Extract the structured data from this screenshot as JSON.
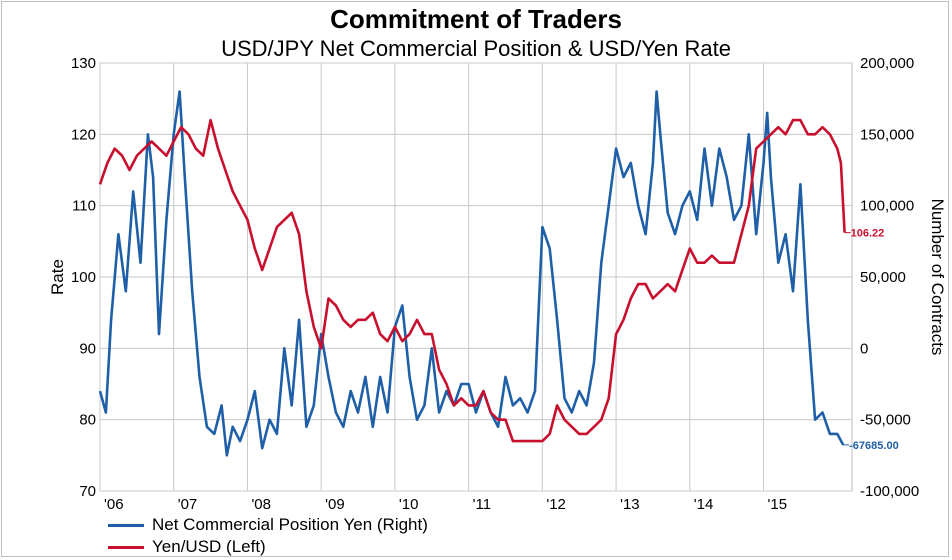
{
  "header": {
    "title": "Commitment of Traders",
    "subtitle": "USD/JPY Net Commercial Position & USD/Yen Rate"
  },
  "legend": {
    "items": [
      {
        "label": "Net Commercial Position Yen (Right)",
        "color": "#1f5fa8"
      },
      {
        "label": "Yen/USD (Left)",
        "color": "#c8102e"
      }
    ]
  },
  "chart_data": {
    "type": "line",
    "title": "Commitment of Traders",
    "subtitle": "USD/JPY Net Commercial Position & USD/Yen Rate",
    "ylabel_left": "Rate",
    "ylabel_right": "Number of Contracts",
    "ylim_left": [
      70,
      130
    ],
    "ylim_right": [
      -100000,
      200000
    ],
    "xlim": [
      2006.0,
      2016.2
    ],
    "grid": true,
    "legend_position": "bottom-left",
    "left_ticks": [
      "130",
      "120",
      "110",
      "100",
      "90",
      "80",
      "70"
    ],
    "right_ticks": [
      "200,000",
      "150,000",
      "100,000",
      "50,000",
      "0",
      "-50,000",
      "-100,000"
    ],
    "x_ticks": [
      {
        "label": "'06",
        "x": 2006.0
      },
      {
        "label": "'07",
        "x": 2007.0
      },
      {
        "label": "'08",
        "x": 2008.0
      },
      {
        "label": "'09",
        "x": 2009.0
      },
      {
        "label": "'10",
        "x": 2010.0
      },
      {
        "label": "'11",
        "x": 2011.0
      },
      {
        "label": "'12",
        "x": 2012.0
      },
      {
        "label": "'13",
        "x": 2013.0
      },
      {
        "label": "'14",
        "x": 2014.0
      },
      {
        "label": "'15",
        "x": 2015.0
      }
    ],
    "series": [
      {
        "name": "Net Commercial Position Yen (Right)",
        "axis": "right",
        "color": "#1f5fa8",
        "end_label": "-67685.00",
        "x": [
          2006.0,
          2006.08,
          2006.15,
          2006.25,
          2006.35,
          2006.45,
          2006.55,
          2006.65,
          2006.72,
          2006.8,
          2006.9,
          2007.0,
          2007.08,
          2007.15,
          2007.25,
          2007.35,
          2007.45,
          2007.55,
          2007.65,
          2007.72,
          2007.8,
          2007.9,
          2008.0,
          2008.1,
          2008.2,
          2008.3,
          2008.4,
          2008.5,
          2008.6,
          2008.7,
          2008.8,
          2008.9,
          2009.0,
          2009.1,
          2009.2,
          2009.3,
          2009.4,
          2009.5,
          2009.6,
          2009.7,
          2009.8,
          2009.9,
          2010.0,
          2010.1,
          2010.2,
          2010.3,
          2010.4,
          2010.5,
          2010.6,
          2010.7,
          2010.8,
          2010.9,
          2011.0,
          2011.1,
          2011.2,
          2011.3,
          2011.4,
          2011.5,
          2011.6,
          2011.7,
          2011.8,
          2011.9,
          2012.0,
          2012.1,
          2012.2,
          2012.3,
          2012.4,
          2012.5,
          2012.6,
          2012.7,
          2012.8,
          2012.9,
          2013.0,
          2013.1,
          2013.2,
          2013.3,
          2013.4,
          2013.5,
          2013.55,
          2013.6,
          2013.7,
          2013.8,
          2013.9,
          2014.0,
          2014.1,
          2014.2,
          2014.3,
          2014.4,
          2014.5,
          2014.6,
          2014.7,
          2014.8,
          2014.9,
          2015.0,
          2015.05,
          2015.1,
          2015.2,
          2015.3,
          2015.4,
          2015.5,
          2015.6,
          2015.7,
          2015.8,
          2015.9,
          2016.0,
          2016.08
        ],
        "values": [
          -30000,
          -45000,
          20000,
          80000,
          40000,
          110000,
          60000,
          150000,
          120000,
          10000,
          90000,
          150000,
          180000,
          120000,
          40000,
          -20000,
          -55000,
          -60000,
          -40000,
          -75000,
          -55000,
          -65000,
          -50000,
          -30000,
          -70000,
          -50000,
          -60000,
          0,
          -40000,
          20000,
          -55000,
          -40000,
          10000,
          -20000,
          -45000,
          -55000,
          -30000,
          -45000,
          -20000,
          -55000,
          -20000,
          -45000,
          15000,
          30000,
          -20000,
          -50000,
          -40000,
          0,
          -45000,
          -30000,
          -40000,
          -25000,
          -25000,
          -45000,
          -30000,
          -45000,
          -55000,
          -20000,
          -40000,
          -35000,
          -45000,
          -30000,
          85000,
          70000,
          20000,
          -35000,
          -45000,
          -30000,
          -40000,
          -10000,
          60000,
          100000,
          140000,
          120000,
          130000,
          100000,
          80000,
          130000,
          180000,
          150000,
          95000,
          80000,
          100000,
          110000,
          90000,
          140000,
          100000,
          140000,
          120000,
          90000,
          100000,
          150000,
          80000,
          130000,
          165000,
          120000,
          60000,
          80000,
          40000,
          115000,
          20000,
          -50000,
          -45000,
          -60000,
          -60000,
          -67685
        ]
      },
      {
        "name": "Yen/USD (Left)",
        "axis": "left",
        "color": "#c8102e",
        "end_label": "106.22",
        "x": [
          2006.0,
          2006.1,
          2006.2,
          2006.3,
          2006.4,
          2006.5,
          2006.6,
          2006.7,
          2006.8,
          2006.9,
          2007.0,
          2007.1,
          2007.2,
          2007.3,
          2007.4,
          2007.5,
          2007.6,
          2007.7,
          2007.8,
          2007.9,
          2008.0,
          2008.1,
          2008.2,
          2008.3,
          2008.4,
          2008.5,
          2008.6,
          2008.7,
          2008.8,
          2008.9,
          2009.0,
          2009.1,
          2009.2,
          2009.3,
          2009.4,
          2009.5,
          2009.6,
          2009.7,
          2009.8,
          2009.9,
          2010.0,
          2010.1,
          2010.2,
          2010.3,
          2010.4,
          2010.5,
          2010.6,
          2010.7,
          2010.8,
          2010.9,
          2011.0,
          2011.1,
          2011.2,
          2011.3,
          2011.4,
          2011.5,
          2011.6,
          2011.7,
          2011.8,
          2011.9,
          2012.0,
          2012.1,
          2012.2,
          2012.3,
          2012.4,
          2012.5,
          2012.6,
          2012.7,
          2012.8,
          2012.9,
          2013.0,
          2013.1,
          2013.2,
          2013.3,
          2013.4,
          2013.5,
          2013.6,
          2013.7,
          2013.8,
          2013.9,
          2014.0,
          2014.1,
          2014.2,
          2014.3,
          2014.4,
          2014.5,
          2014.6,
          2014.7,
          2014.8,
          2014.9,
          2015.0,
          2015.1,
          2015.2,
          2015.3,
          2015.4,
          2015.5,
          2015.6,
          2015.7,
          2015.8,
          2015.9,
          2016.0,
          2016.05,
          2016.1
        ],
        "values": [
          113,
          116,
          118,
          117,
          115,
          117,
          118,
          119,
          118,
          117,
          119,
          121,
          120,
          118,
          117,
          122,
          118,
          115,
          112,
          110,
          108,
          104,
          101,
          104,
          107,
          108,
          109,
          106,
          98,
          93,
          90,
          97,
          96,
          94,
          93,
          94,
          94,
          95,
          92,
          91,
          93,
          91,
          92,
          94,
          92,
          92,
          87,
          85,
          82,
          83,
          82,
          82,
          84,
          81,
          80,
          80,
          77,
          77,
          77,
          77,
          77,
          78,
          82,
          80,
          79,
          78,
          78,
          79,
          80,
          83,
          92,
          94,
          97,
          99,
          99,
          97,
          98,
          99,
          98,
          101,
          104,
          102,
          102,
          103,
          102,
          102,
          102,
          106,
          110,
          118,
          119,
          120,
          121,
          120,
          122,
          122,
          120,
          120,
          121,
          120,
          118,
          116,
          106.22
        ]
      }
    ]
  }
}
